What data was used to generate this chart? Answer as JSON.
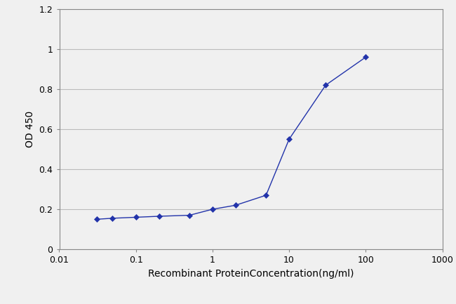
{
  "x": [
    0.031,
    0.049,
    0.1,
    0.2,
    0.5,
    1.0,
    2.0,
    5.0,
    10.0,
    30.0,
    100.0
  ],
  "y": [
    0.15,
    0.155,
    0.16,
    0.165,
    0.17,
    0.2,
    0.22,
    0.27,
    0.55,
    0.82,
    0.96
  ],
  "line_color": "#2233aa",
  "marker": "D",
  "marker_size": 4,
  "line_width": 1.0,
  "xlabel": "Recombinant ProteinConcentration(ng/ml)",
  "ylabel": "OD 450",
  "xlim": [
    0.01,
    1000
  ],
  "ylim": [
    0,
    1.2
  ],
  "yticks": [
    0,
    0.2,
    0.4,
    0.6,
    0.8,
    1.0,
    1.2
  ],
  "xticks": [
    0.01,
    0.1,
    1,
    10,
    100,
    1000
  ],
  "xtick_labels": [
    "0.01",
    "0.1",
    "1",
    "10",
    "100",
    "1000"
  ],
  "grid_color": "#bbbbbb",
  "bg_color": "#f0f0f0",
  "plot_bg_color": "#f0f0f0",
  "xlabel_fontsize": 10,
  "ylabel_fontsize": 10,
  "tick_fontsize": 9,
  "fig_width": 6.5,
  "fig_height": 4.33
}
